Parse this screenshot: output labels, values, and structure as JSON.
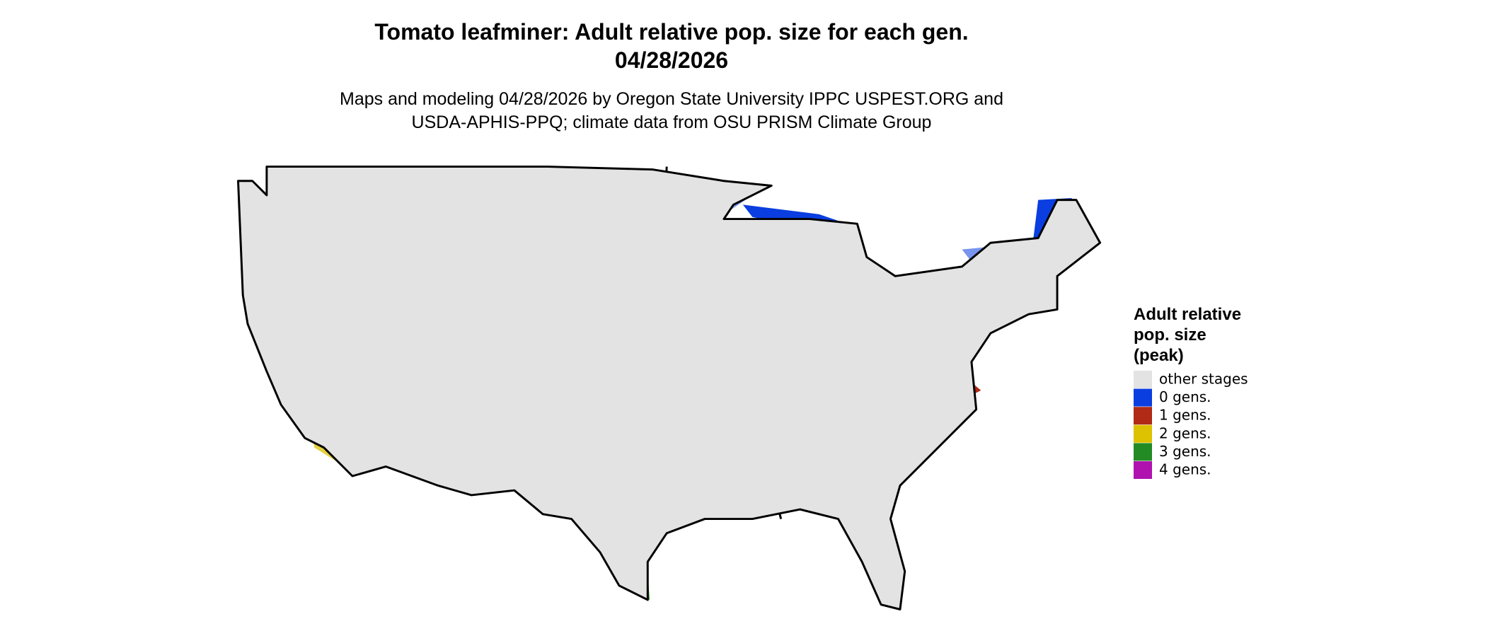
{
  "title": [
    "Tomato leafminer: Adult relative pop. size for each gen.",
    "04/28/2026"
  ],
  "subtitle": [
    "Maps and modeling 04/28/2026 by Oregon State University IPPC USPEST.ORG and",
    "USDA-APHIS-PPQ; climate data from OSU PRISM Climate Group"
  ],
  "legend": {
    "title": [
      "Adult relative",
      "pop. size",
      "(peak)"
    ],
    "items": [
      {
        "label": "other stages",
        "color": "#e3e3e3"
      },
      {
        "label": "0 gens.",
        "color": "#0a3ee0"
      },
      {
        "label": "1 gens.",
        "color": "#b02a16"
      },
      {
        "label": "2 gens.",
        "color": "#dcc200"
      },
      {
        "label": "3 gens.",
        "color": "#238b23"
      },
      {
        "label": "4 gens.",
        "color": "#b012b0"
      }
    ]
  }
}
